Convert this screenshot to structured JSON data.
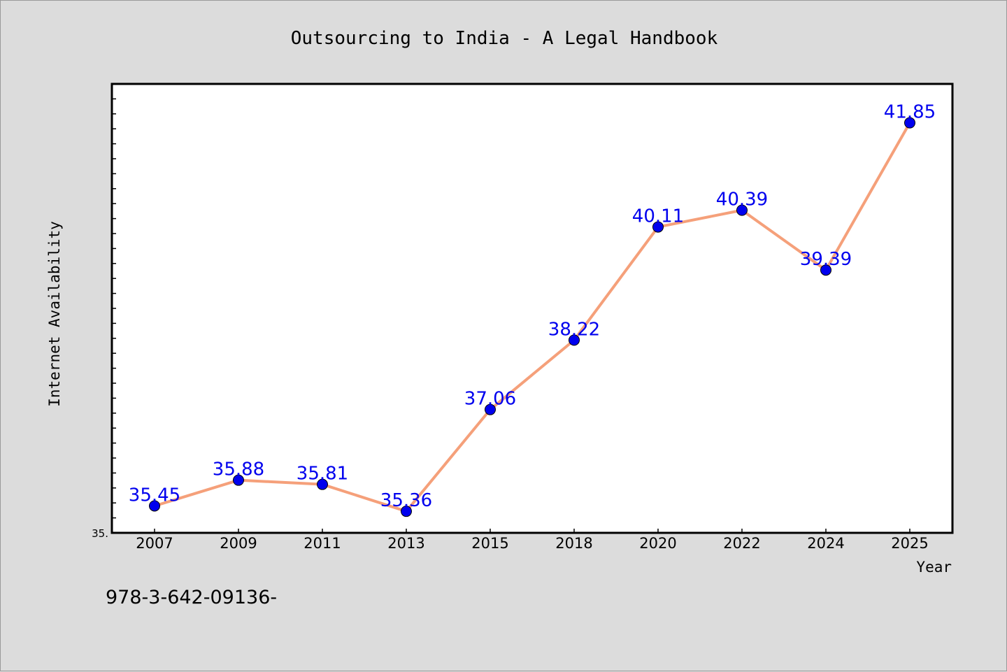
{
  "chart_data": {
    "type": "line",
    "title": "Outsourcing to India - A Legal Handbook",
    "xlabel": "Year",
    "ylabel": "Internet Availability",
    "x": [
      "2007",
      "2009",
      "2011",
      "2013",
      "2015",
      "2018",
      "2020",
      "2022",
      "2024",
      "2025"
    ],
    "series": [
      {
        "values": [
          35.45,
          35.88,
          35.81,
          35.36,
          37.06,
          38.22,
          40.11,
          40.39,
          39.39,
          41.85
        ],
        "data_labels": [
          "35.45",
          "35.88",
          "35.81",
          "35.36",
          "37.06",
          "38.22",
          "40.11",
          "40.39",
          "39.39",
          "41.85"
        ]
      }
    ],
    "ylim": [
      35.0,
      42.5
    ],
    "y_tick_label": "35.",
    "grid": false,
    "colors": {
      "line": "#f5a07a",
      "marker": "#0000ee",
      "data_label": "#0000ee",
      "plot_bg": "#ffffff",
      "page_bg": "#dcdcdc"
    }
  },
  "footer_text": "978-3-642-09136-"
}
